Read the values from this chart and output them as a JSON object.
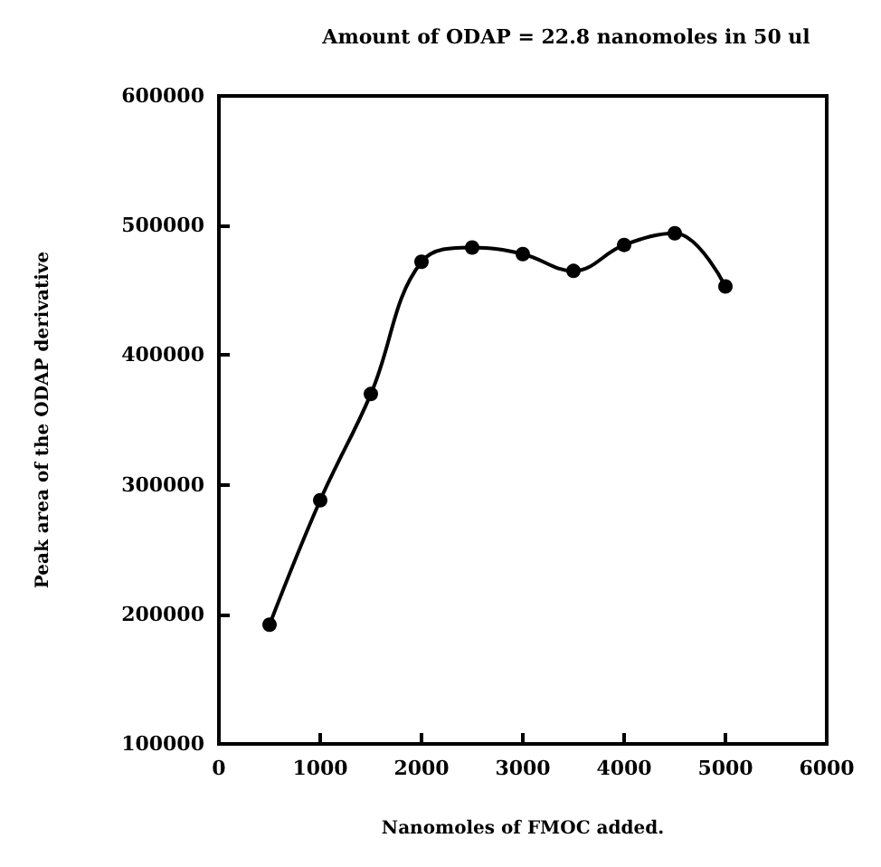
{
  "chart_data": {
    "type": "line",
    "title": "Amount of ODAP = 22.8 nanomoles in 50 ul",
    "xlabel": "Nanomoles of FMOC added.",
    "ylabel": "Peak area of the ODAP derivative",
    "x": [
      500,
      1000,
      1500,
      2000,
      2500,
      3000,
      3500,
      4000,
      4500,
      5000
    ],
    "series": [
      {
        "color": "#000000",
        "values": [
          192000,
          288000,
          370000,
          472000,
          483000,
          478000,
          465000,
          485000,
          494000,
          453000
        ]
      }
    ],
    "xlim": [
      0,
      6000
    ],
    "xticks": [
      0,
      1000,
      2000,
      3000,
      4000,
      5000,
      6000
    ],
    "ylim": [
      100000,
      600000
    ],
    "yticks": [
      100000,
      200000,
      300000,
      400000,
      500000,
      600000
    ],
    "grid": false,
    "marker": "circle",
    "line_style": "solid"
  }
}
